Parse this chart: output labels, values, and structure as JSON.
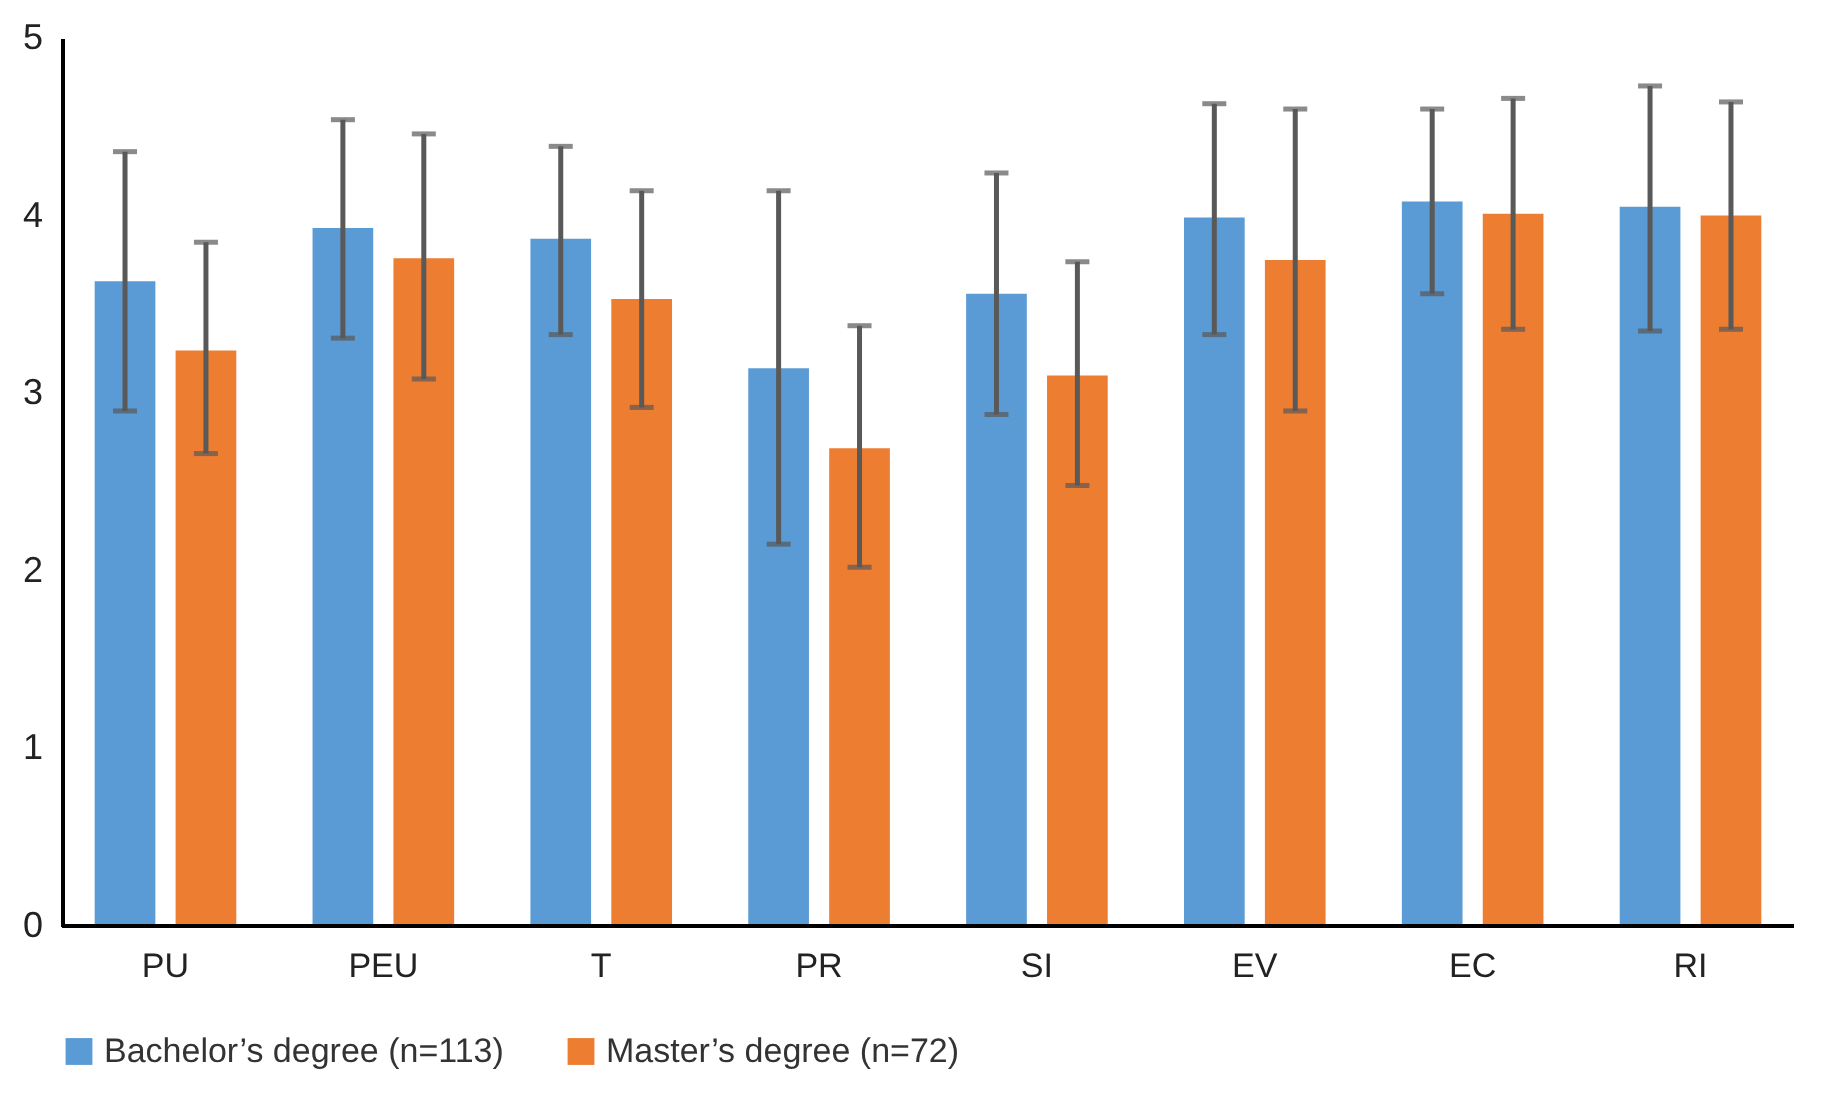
{
  "chart_data": {
    "type": "bar",
    "categories": [
      "PU",
      "PEU",
      "T",
      "PR",
      "SI",
      "EV",
      "EC",
      "RI"
    ],
    "series": [
      {
        "name": "Bachelor’s degree (n=113)",
        "color": "#5b9bd5",
        "values": [
          3.63,
          3.93,
          3.87,
          3.14,
          3.56,
          3.99,
          4.08,
          4.05
        ],
        "errors": [
          [
            2.9,
            4.36
          ],
          [
            3.31,
            4.54
          ],
          [
            3.33,
            4.39
          ],
          [
            2.15,
            4.14
          ],
          [
            2.88,
            4.24
          ],
          [
            3.33,
            4.63
          ],
          [
            3.56,
            4.6
          ],
          [
            3.35,
            4.73
          ]
        ]
      },
      {
        "name": "Master’s degree (n=72)",
        "color": "#ed7d31",
        "values": [
          3.24,
          3.76,
          3.53,
          2.69,
          3.1,
          3.75,
          4.01,
          4.0
        ],
        "errors": [
          [
            2.66,
            3.85
          ],
          [
            3.08,
            4.46
          ],
          [
            2.92,
            4.14
          ],
          [
            2.02,
            3.38
          ],
          [
            2.48,
            3.74
          ],
          [
            2.9,
            4.6
          ],
          [
            3.36,
            4.66
          ],
          [
            3.36,
            4.64
          ]
        ]
      }
    ],
    "ylim": [
      0,
      5
    ],
    "yticks": [
      0,
      1,
      2,
      3,
      4,
      5
    ],
    "legend": "bottom"
  }
}
